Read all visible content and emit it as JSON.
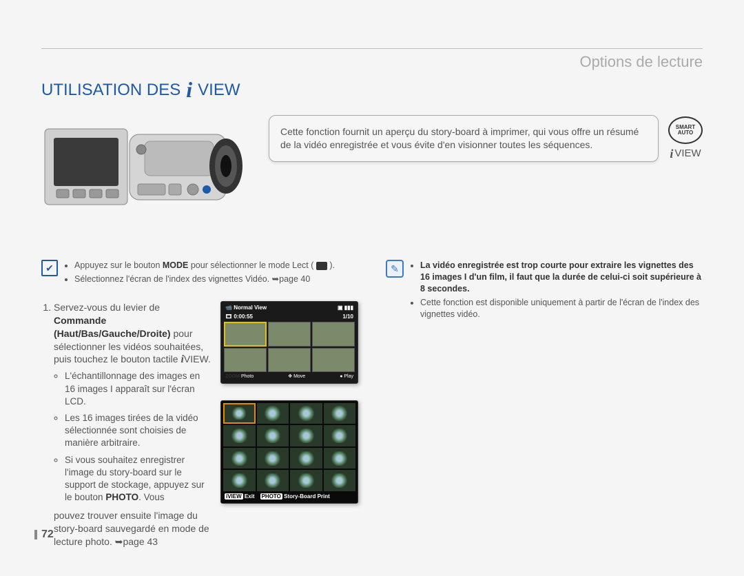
{
  "header": {
    "page_title": "Options de lecture"
  },
  "section": {
    "title_prefix": "UTILISATION DES ",
    "title_suffix": "VIEW"
  },
  "callout": {
    "text": "Cette fonction fournit un aperçu du story-board à imprimer, qui vous offre un résumé de la vidéo enregistrée et vous évite d'en visionner toutes les séquences.",
    "smart_auto_top": "SMART",
    "smart_auto_bottom": "AUTO",
    "iview_label": "VIEW"
  },
  "precheck": {
    "items": [
      "Appuyez sur le bouton <b>MODE</b> pour sélectionner le mode Lect ( <span class='mode-btn'></span> ).",
      "Sélectionnez l'écran de l'index des vignettes Vidéo. <span class='arrow-ref'>➥</span>page 40"
    ]
  },
  "step": {
    "main_html": "Servez-vous du levier de <b>Commande (Haut/Bas/Gauche/Droite)</b> pour sélectionner les vidéos souhaitées, puis touchez le bouton tactile <span class='iview-i' style='font-size:16px'>i</span>VIEW.",
    "subs": [
      "L'échantillonnage des images en 16 images I apparaît sur l'écran LCD.",
      "Les 16 images tirées de la vidéo sélectionnée sont choisies de manière arbitraire.",
      "Si vous souhaitez enregistrer l'image du story-board sur le support de stockage, appuyez sur le bouton <b>PHOTO</b>. Vous"
    ],
    "tail_html": "pouvez trouver ensuite l'image du story-board sauvegardé en mode de lecture photo. <span class='arrow-ref'>➥</span>page 43"
  },
  "note": {
    "items": [
      "<b>La vidéo enregistrée est trop courte pour extraire les vignettes des 16 images I d'un film, il faut que la durée de celui-ci soit supérieure à 8 secondes.</b>",
      "Cette fonction est disponible uniquement à partir de l'écran de l'index des vignettes vidéo."
    ]
  },
  "lcd1": {
    "title": "Normal View",
    "time": "0:00:55",
    "counter": "1/10",
    "foot_left": "Photo",
    "foot_mid": "Move",
    "foot_right": "Play",
    "zoom": "ZOOM",
    "icon_card": "▣",
    "icon_batt": "▮▮▮"
  },
  "lcd2": {
    "exit_label": "Exit",
    "exit_btn": "iVIEW",
    "print_label": "Story-Board Print",
    "print_btn": "PHOTO"
  },
  "page_number": "72"
}
